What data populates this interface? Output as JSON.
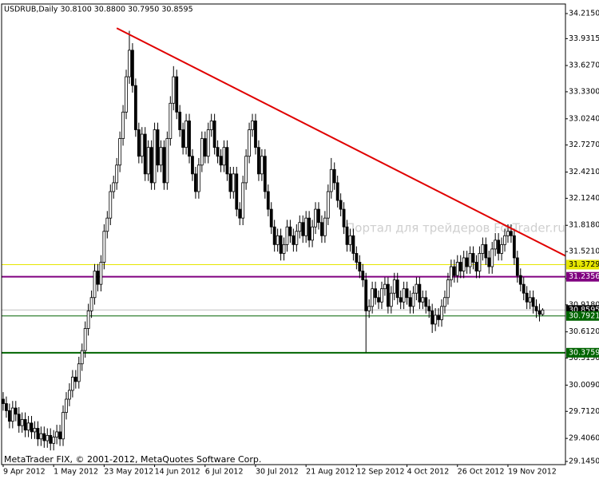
{
  "chart_data": {
    "type": "candlestick",
    "title": "USDRUB,Daily  30.8100 30.8800 30.7950 30.8595",
    "watermark": "Портал для трейдеров ForTrader.ru",
    "footer": "MetaTrader FIX, © 2001-2012, MetaQuotes Software Corp.",
    "categories": [
      "9 Apr 2012",
      null,
      null,
      null,
      null,
      null,
      null,
      null,
      null,
      null,
      null,
      null,
      null,
      null,
      null,
      null,
      "1 May 2012",
      null,
      null,
      null,
      null,
      null,
      null,
      null,
      null,
      null,
      null,
      null,
      null,
      null,
      null,
      null,
      "23 May 2012",
      null,
      null,
      null,
      null,
      null,
      null,
      null,
      null,
      null,
      null,
      null,
      null,
      null,
      null,
      null,
      "14 Jun 2012",
      null,
      null,
      null,
      null,
      null,
      null,
      null,
      null,
      null,
      null,
      null,
      null,
      null,
      null,
      null,
      "6 Jul 2012",
      null,
      null,
      null,
      null,
      null,
      null,
      null,
      null,
      null,
      null,
      null,
      null,
      null,
      null,
      null,
      "30 Jul 2012",
      null,
      null,
      null,
      null,
      null,
      null,
      null,
      null,
      null,
      null,
      null,
      null,
      null,
      null,
      null,
      "21 Aug 2012",
      null,
      null,
      null,
      null,
      null,
      null,
      null,
      null,
      null,
      null,
      null,
      null,
      null,
      null,
      null,
      "12 Sep 2012",
      null,
      null,
      null,
      null,
      null,
      null,
      null,
      null,
      null,
      null,
      null,
      null,
      null,
      null,
      null,
      "4 Oct 2012",
      null,
      null,
      null,
      null,
      null,
      null,
      null,
      null,
      null,
      null,
      null,
      null,
      null,
      null,
      null,
      "26 Oct 2012",
      null,
      null,
      null,
      null,
      null,
      null,
      null,
      null,
      null,
      null,
      null,
      null,
      null,
      null,
      null,
      "19 Nov 2012",
      null,
      null,
      null,
      null,
      null,
      null,
      null,
      null,
      null,
      null,
      null
    ],
    "open": [
      29.85,
      29.8,
      29.72,
      29.6,
      29.75,
      29.68,
      29.55,
      29.62,
      29.5,
      29.58,
      29.48,
      29.52,
      29.4,
      29.46,
      29.38,
      29.44,
      29.35,
      29.42,
      29.48,
      29.4,
      29.7,
      29.85,
      29.95,
      30.1,
      30.05,
      30.25,
      30.4,
      30.65,
      30.85,
      31.0,
      31.3,
      31.15,
      31.4,
      31.75,
      31.9,
      32.2,
      32.3,
      32.5,
      32.8,
      33.1,
      33.5,
      33.8,
      33.4,
      32.9,
      32.6,
      32.85,
      32.4,
      32.7,
      32.3,
      32.9,
      32.5,
      32.7,
      32.3,
      32.8,
      33.2,
      33.5,
      33.1,
      32.9,
      32.7,
      33.0,
      32.6,
      32.4,
      32.2,
      32.5,
      32.8,
      32.6,
      32.9,
      33.0,
      32.7,
      32.6,
      32.5,
      32.7,
      32.4,
      32.2,
      32.4,
      32.0,
      31.9,
      32.3,
      32.6,
      32.9,
      33.0,
      32.7,
      32.4,
      32.6,
      32.2,
      32.0,
      31.8,
      31.6,
      31.7,
      31.5,
      31.6,
      31.8,
      31.7,
      31.6,
      31.75,
      31.85,
      31.7,
      31.9,
      31.65,
      31.8,
      32.0,
      31.85,
      31.7,
      31.9,
      32.2,
      32.45,
      32.3,
      32.1,
      32.0,
      31.8,
      31.6,
      31.7,
      31.5,
      31.4,
      31.3,
      31.2,
      30.85,
      30.9,
      31.1,
      31.0,
      30.95,
      31.1,
      31.15,
      30.9,
      31.05,
      31.2,
      31.0,
      30.95,
      31.1,
      31.0,
      30.9,
      31.05,
      31.15,
      30.95,
      31.0,
      30.9,
      30.85,
      30.7,
      30.8,
      30.75,
      30.9,
      31.0,
      31.2,
      31.35,
      31.25,
      31.4,
      31.3,
      31.45,
      31.35,
      31.5,
      31.4,
      31.3,
      31.5,
      31.6,
      31.45,
      31.35,
      31.55,
      31.65,
      31.5,
      31.6,
      31.7,
      31.75,
      31.7,
      31.45,
      31.25,
      31.15,
      31.05,
      30.95,
      31.0,
      30.9,
      30.85,
      30.81
    ],
    "high": [
      29.93,
      29.88,
      29.8,
      29.83,
      29.83,
      29.76,
      29.7,
      29.7,
      29.66,
      29.66,
      29.6,
      29.6,
      29.54,
      29.54,
      29.52,
      29.52,
      29.5,
      29.56,
      29.56,
      29.78,
      29.93,
      30.03,
      30.18,
      30.18,
      30.33,
      30.48,
      30.73,
      30.93,
      31.08,
      31.38,
      31.38,
      31.48,
      31.83,
      31.98,
      32.28,
      32.38,
      32.58,
      32.88,
      33.18,
      33.58,
      34.02,
      33.88,
      33.48,
      32.98,
      32.93,
      32.93,
      32.78,
      32.78,
      32.98,
      32.98,
      32.78,
      32.78,
      32.88,
      33.28,
      33.62,
      33.58,
      33.18,
      32.98,
      33.08,
      33.08,
      32.68,
      32.48,
      32.58,
      32.88,
      32.88,
      32.98,
      33.08,
      33.08,
      32.78,
      32.68,
      32.78,
      32.78,
      32.48,
      32.48,
      32.48,
      32.08,
      32.38,
      32.68,
      32.98,
      33.08,
      33.08,
      32.78,
      32.68,
      32.68,
      32.28,
      32.08,
      31.88,
      31.78,
      31.78,
      31.68,
      31.88,
      31.88,
      31.78,
      31.83,
      31.93,
      31.93,
      31.98,
      31.98,
      31.88,
      32.08,
      32.08,
      31.93,
      31.98,
      32.28,
      32.58,
      32.53,
      32.38,
      32.18,
      32.08,
      31.88,
      31.78,
      31.78,
      31.58,
      31.48,
      31.38,
      31.28,
      30.98,
      31.18,
      31.18,
      31.08,
      31.18,
      31.23,
      31.23,
      31.13,
      31.28,
      31.28,
      31.08,
      31.18,
      31.18,
      31.08,
      31.13,
      31.23,
      31.23,
      31.08,
      31.08,
      30.98,
      30.93,
      30.88,
      30.88,
      30.98,
      31.08,
      31.28,
      31.43,
      31.43,
      31.48,
      31.48,
      31.53,
      31.53,
      31.58,
      31.58,
      31.48,
      31.58,
      31.68,
      31.68,
      31.53,
      31.63,
      31.73,
      31.73,
      31.68,
      31.78,
      31.83,
      31.83,
      31.78,
      31.53,
      31.33,
      31.23,
      31.13,
      31.08,
      31.08,
      30.98,
      30.93,
      30.88
    ],
    "low": [
      29.72,
      29.64,
      29.52,
      29.52,
      29.6,
      29.47,
      29.47,
      29.42,
      29.42,
      29.4,
      29.4,
      29.32,
      29.32,
      29.3,
      29.3,
      29.27,
      29.27,
      29.34,
      29.32,
      29.32,
      29.62,
      29.77,
      29.87,
      29.97,
      29.97,
      30.17,
      30.32,
      30.57,
      30.77,
      30.92,
      31.07,
      31.07,
      31.32,
      31.67,
      31.82,
      32.12,
      32.22,
      32.42,
      32.72,
      33.02,
      33.42,
      33.32,
      32.82,
      32.52,
      32.52,
      32.32,
      32.32,
      32.22,
      32.22,
      32.42,
      32.42,
      32.22,
      32.22,
      32.72,
      33.12,
      33.02,
      32.82,
      32.62,
      32.62,
      32.52,
      32.32,
      32.12,
      32.12,
      32.42,
      32.52,
      32.52,
      32.82,
      32.62,
      32.52,
      32.42,
      32.42,
      32.32,
      32.12,
      32.12,
      31.92,
      31.82,
      31.82,
      32.22,
      32.52,
      32.82,
      32.62,
      32.32,
      32.32,
      32.12,
      31.92,
      31.72,
      31.52,
      31.52,
      31.42,
      31.42,
      31.52,
      31.62,
      31.52,
      31.52,
      31.67,
      31.62,
      31.62,
      31.57,
      31.57,
      31.72,
      31.77,
      31.62,
      31.62,
      31.82,
      32.12,
      32.22,
      32.02,
      31.92,
      31.72,
      31.52,
      31.52,
      31.42,
      31.32,
      31.22,
      31.12,
      30.38,
      30.77,
      30.82,
      30.92,
      30.87,
      30.87,
      31.02,
      30.82,
      30.82,
      30.97,
      30.92,
      30.87,
      30.87,
      30.92,
      30.82,
      30.82,
      30.97,
      30.87,
      30.87,
      30.82,
      30.77,
      30.6,
      30.62,
      30.67,
      30.67,
      30.82,
      30.92,
      31.12,
      31.17,
      31.17,
      31.22,
      31.22,
      31.27,
      31.27,
      31.32,
      31.22,
      31.22,
      31.42,
      31.37,
      31.27,
      31.27,
      31.47,
      31.42,
      31.42,
      31.52,
      31.62,
      31.62,
      31.37,
      31.17,
      31.07,
      30.97,
      30.87,
      30.87,
      30.82,
      30.77,
      30.73,
      30.795
    ],
    "close": [
      29.8,
      29.72,
      29.6,
      29.75,
      29.68,
      29.55,
      29.62,
      29.5,
      29.58,
      29.48,
      29.52,
      29.4,
      29.46,
      29.38,
      29.44,
      29.35,
      29.42,
      29.48,
      29.4,
      29.7,
      29.85,
      29.95,
      30.1,
      30.05,
      30.25,
      30.4,
      30.65,
      30.85,
      31.0,
      31.3,
      31.15,
      31.4,
      31.75,
      31.9,
      32.2,
      32.3,
      32.5,
      32.8,
      33.1,
      33.5,
      33.8,
      33.4,
      32.9,
      32.6,
      32.85,
      32.4,
      32.7,
      32.3,
      32.9,
      32.5,
      32.7,
      32.3,
      32.8,
      33.2,
      33.5,
      33.1,
      32.9,
      32.7,
      33.0,
      32.6,
      32.4,
      32.2,
      32.5,
      32.8,
      32.6,
      32.9,
      33.0,
      32.7,
      32.6,
      32.5,
      32.7,
      32.4,
      32.2,
      32.4,
      32.0,
      31.9,
      32.3,
      32.6,
      32.9,
      33.0,
      32.7,
      32.4,
      32.6,
      32.2,
      32.0,
      31.8,
      31.6,
      31.7,
      31.5,
      31.6,
      31.8,
      31.7,
      31.6,
      31.75,
      31.85,
      31.7,
      31.9,
      31.65,
      31.8,
      32.0,
      31.85,
      31.7,
      31.9,
      32.2,
      32.45,
      32.3,
      32.1,
      32.0,
      31.8,
      31.6,
      31.7,
      31.5,
      31.4,
      31.3,
      31.2,
      30.85,
      30.9,
      31.1,
      31.0,
      30.95,
      31.1,
      31.15,
      30.9,
      31.05,
      31.2,
      31.0,
      30.95,
      31.1,
      31.0,
      30.9,
      31.05,
      31.15,
      30.95,
      31.0,
      30.9,
      30.85,
      30.7,
      30.8,
      30.75,
      30.9,
      31.0,
      31.2,
      31.35,
      31.25,
      31.4,
      31.3,
      31.45,
      31.35,
      31.5,
      31.4,
      31.3,
      31.5,
      31.6,
      31.45,
      31.35,
      31.55,
      31.65,
      31.5,
      31.6,
      31.7,
      31.75,
      31.7,
      31.45,
      31.25,
      31.15,
      31.05,
      30.95,
      31.0,
      30.9,
      30.85,
      30.81,
      30.8595
    ],
    "ylim": [
      29.109,
      34.3235
    ],
    "yticks": [
      {
        "value": 34.215,
        "label": "34.2150"
      },
      33.9315,
      {
        "value": 33.627,
        "label": "33.6270"
      },
      {
        "value": 33.33,
        "label": "33.3300"
      },
      {
        "value": 33.024,
        "label": "33.0240"
      },
      {
        "value": 32.727,
        "label": "32.7270"
      },
      {
        "value": 32.421,
        "label": "32.4210"
      },
      {
        "value": 32.124,
        "label": "32.1240"
      },
      {
        "value": 31.818,
        "label": "31.8180"
      },
      {
        "value": 31.521,
        "label": "31.5210"
      },
      {
        "value": 31.215,
        "label": "31.2150"
      },
      {
        "value": 30.918,
        "label": "30.9180"
      },
      {
        "value": 30.612,
        "label": "30.6120"
      },
      {
        "value": 30.315,
        "label": "30.3150"
      },
      {
        "value": 30.009,
        "label": "30.0090"
      },
      {
        "value": 29.712,
        "label": "29.7120"
      },
      {
        "value": 29.406,
        "label": "29.4060"
      },
      {
        "value": 29.145,
        "label": "29.1450"
      }
    ],
    "levels": [
      {
        "value": 31.3729,
        "color": "#e6e600",
        "text_color": "#000000",
        "width": 1
      },
      {
        "value": 31.2356,
        "color": "#800080",
        "text_color": "#ffffff",
        "width": 2
      },
      {
        "value": 30.7921,
        "color": "#006400",
        "text_color": "#ffffff",
        "width": 1
      },
      {
        "value": 30.3759,
        "color": "#006400",
        "text_color": "#ffffff",
        "width": 2
      }
    ],
    "bid_color": "#c0c0c0",
    "trendline": {
      "x": [
        36,
        180
      ],
      "y": [
        34.05,
        31.44
      ],
      "color": "#e00000"
    },
    "up_color": "#ffffff",
    "down_color": "#000000",
    "outline_color": "#000000"
  }
}
